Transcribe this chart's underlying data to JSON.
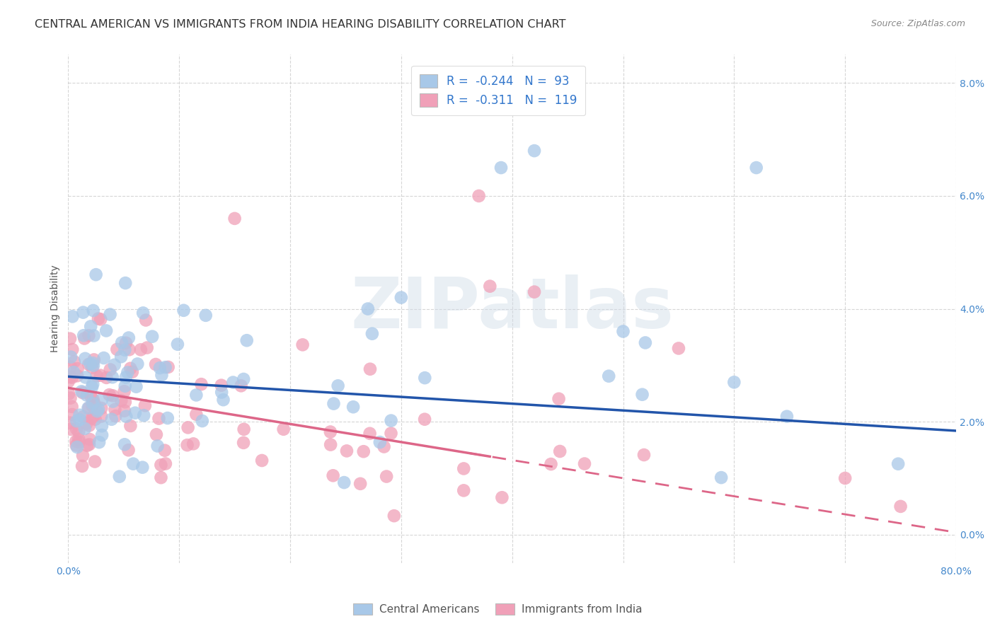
{
  "title": "CENTRAL AMERICAN VS IMMIGRANTS FROM INDIA HEARING DISABILITY CORRELATION CHART",
  "source": "Source: ZipAtlas.com",
  "ylabel": "Hearing Disability",
  "xlim": [
    0,
    0.8
  ],
  "ylim": [
    -0.005,
    0.085
  ],
  "yticks": [
    0.0,
    0.02,
    0.04,
    0.06,
    0.08
  ],
  "xticks": [
    0.0,
    0.1,
    0.2,
    0.3,
    0.4,
    0.5,
    0.6,
    0.7,
    0.8
  ],
  "legend_labels": [
    "Central Americans",
    "Immigrants from India"
  ],
  "blue_R": -0.244,
  "blue_N": 93,
  "pink_R": -0.311,
  "pink_N": 119,
  "blue_color": "#A8C8E8",
  "pink_color": "#F0A0B8",
  "blue_line_color": "#2255AA",
  "pink_line_color": "#DD6688",
  "background_color": "#FFFFFF",
  "watermark": "ZIPatlas",
  "title_fontsize": 11.5,
  "axis_label_fontsize": 10,
  "tick_fontsize": 10,
  "legend_fontsize": 12,
  "blue_intercept": 0.028,
  "blue_slope": -0.012,
  "pink_intercept": 0.026,
  "pink_slope": -0.032
}
